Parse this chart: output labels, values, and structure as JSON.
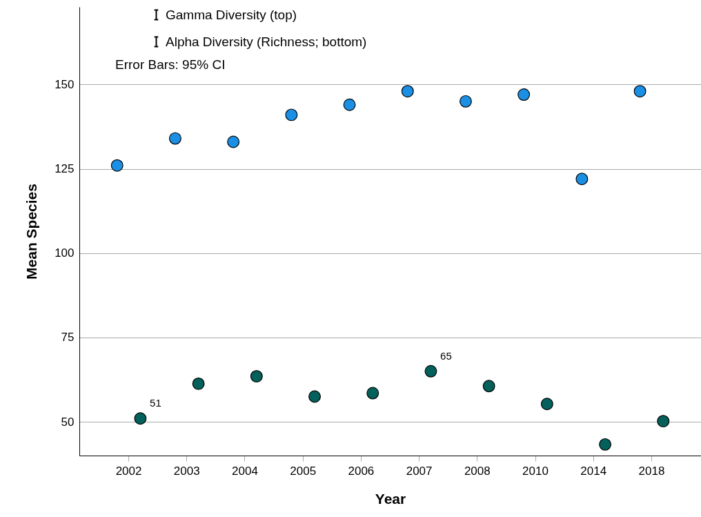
{
  "chart_data": {
    "type": "scatter",
    "xlabel": "Year",
    "ylabel": "Mean Species",
    "categories": [
      "2002",
      "2003",
      "2004",
      "2005",
      "2006",
      "2007",
      "2008",
      "2010",
      "2014",
      "2018"
    ],
    "series": [
      {
        "name": "Gamma Diversity (top)",
        "color": "#1a8fe3",
        "values": [
          126,
          134,
          133,
          141,
          144,
          148,
          145,
          147,
          122,
          148
        ]
      },
      {
        "name": "Alpha Diversity (Richness; bottom)",
        "color": "#04605a",
        "values": [
          51,
          61.3,
          63.5,
          57.5,
          58.5,
          65,
          60.6,
          55.3,
          43.3,
          50.2
        ],
        "value_labels": [
          "51",
          null,
          null,
          null,
          null,
          "65",
          null,
          null,
          null,
          null
        ]
      }
    ],
    "ylim": [
      40,
      173
    ],
    "yticks": [
      50,
      75,
      100,
      125,
      150
    ],
    "grid": "y",
    "legend": "top left",
    "marker": "circle",
    "annotations": [
      "Error Bars: 95% CI"
    ]
  }
}
